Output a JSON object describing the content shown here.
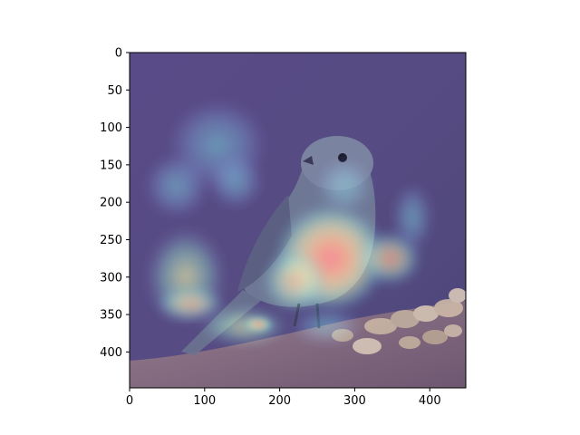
{
  "figure": {
    "image": {
      "subject": "bird-on-rocks",
      "overlay": "heatmap"
    },
    "x_axis": {
      "ticks": [
        0,
        100,
        200,
        300,
        400
      ],
      "range": [
        0,
        448
      ]
    },
    "y_axis": {
      "ticks": [
        0,
        50,
        100,
        150,
        200,
        250,
        300,
        350,
        400
      ],
      "range": [
        0,
        448
      ],
      "inverted": true
    },
    "colors": {
      "background": "#5b4a7c",
      "bird_body": "#6c7895",
      "rocks": "#c8b7a8",
      "ground": "#8b6f86",
      "heat_low": "#4f47a8",
      "heat_mid": "#36c8b4",
      "heat_high": "#ff2a00"
    }
  }
}
